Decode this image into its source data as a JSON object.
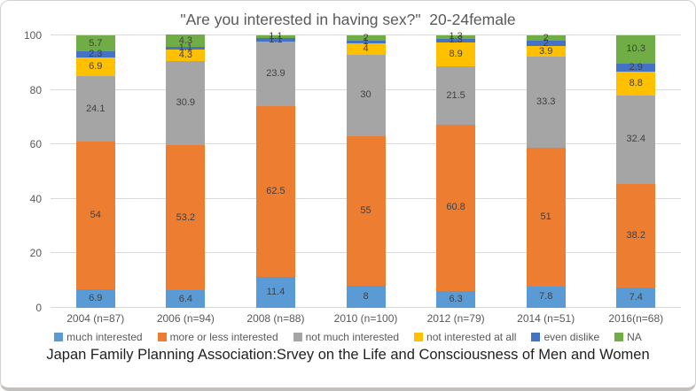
{
  "chart": {
    "title": "\"Are you interested in having sex?\"  20-24female",
    "source": "Japan Family Planning Association:Srvey on the Life and Consciousness of Men and Women"
  },
  "chart_data": {
    "type": "bar",
    "stacked": true,
    "title": "\"Are you interested in having sex?\"  20-24female",
    "xlabel": "",
    "ylabel": "",
    "ylim": [
      0,
      100
    ],
    "y_ticks": [
      0,
      20,
      40,
      60,
      80,
      100
    ],
    "grid": true,
    "legend_position": "bottom",
    "categories": [
      "2004 (n=87)",
      "2006 (n=94)",
      "2008 (n=88)",
      "2010 (n=100)",
      "2012 (n=79)",
      "2014 (n=51)",
      "2016(n=68)"
    ],
    "series": [
      {
        "name": "much interested",
        "color": "#5B9BD5",
        "values": [
          6.9,
          6.4,
          11.4,
          8,
          6.3,
          7.8,
          7.4
        ]
      },
      {
        "name": "more or less interested",
        "color": "#ED7D31",
        "values": [
          54,
          53.2,
          62.5,
          55,
          60.8,
          51,
          38.2
        ]
      },
      {
        "name": "not much interested",
        "color": "#A5A5A5",
        "values": [
          24.1,
          30.9,
          23.9,
          30,
          21.5,
          33.3,
          32.4
        ]
      },
      {
        "name": "not interested at all",
        "color": "#FFC000",
        "values": [
          6.9,
          4.3,
          0,
          4,
          8.9,
          3.9,
          8.8
        ]
      },
      {
        "name": "even dislike",
        "color": "#4472C4",
        "values": [
          2.3,
          1.1,
          1.1,
          1,
          1.3,
          2,
          2.9
        ]
      },
      {
        "name": "NA",
        "color": "#70AD47",
        "values": [
          5.7,
          4.3,
          1.1,
          2,
          1.3,
          2,
          10.3
        ]
      }
    ],
    "source": "Japan Family Planning Association:Srvey on the Life and Consciousness of Men and Women"
  },
  "colors": {
    "gridline": "#D9D9D9",
    "axis_text": "#595959",
    "data_label": "#404040",
    "title_text": "#595959"
  }
}
